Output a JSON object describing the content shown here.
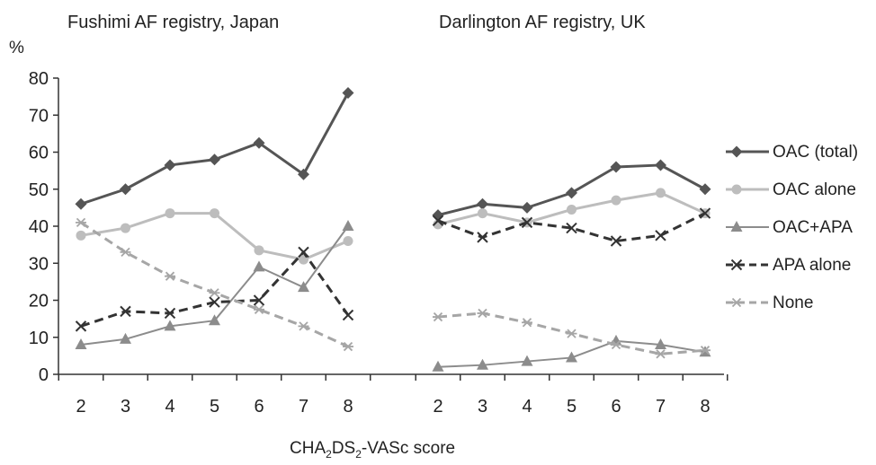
{
  "panels": [
    {
      "title": "Fushimi AF registry, Japan"
    },
    {
      "title": "Darlington AF registry, UK"
    }
  ],
  "y_unit": "%",
  "xlabel": {
    "prefix": "CHA",
    "sub1": "2",
    "mid": "DS",
    "sub2": "2",
    "suffix": "-VASc score"
  },
  "colors": {
    "axis": "#333333",
    "oac_total": "#555555",
    "oac_alone": "#bdbdbd",
    "oac_apa": "#8c8c8c",
    "apa_alone": "#333333",
    "none": "#a6a6a6"
  },
  "chart_data": [
    {
      "type": "line",
      "title": "Fushimi AF registry, Japan",
      "xlabel": "CHA2DS2-VASc score",
      "ylabel": "%",
      "categories": [
        "2",
        "3",
        "4",
        "5",
        "6",
        "7",
        "8"
      ],
      "ylim": [
        0,
        80
      ],
      "yticks": [
        0,
        10,
        20,
        30,
        40,
        50,
        60,
        70,
        80
      ],
      "grid": false,
      "legend": "right",
      "series": [
        {
          "name": "OAC (total)",
          "values": [
            46,
            50,
            56.5,
            58,
            62.5,
            54,
            76
          ]
        },
        {
          "name": "OAC alone",
          "values": [
            37.5,
            39.5,
            43.5,
            43.5,
            33.5,
            31,
            36
          ]
        },
        {
          "name": "OAC+APA",
          "values": [
            8,
            9.5,
            13,
            14.5,
            29,
            23.5,
            40
          ]
        },
        {
          "name": "APA alone",
          "values": [
            13,
            17,
            16.5,
            19.5,
            20,
            33,
            16
          ]
        },
        {
          "name": "None",
          "values": [
            41,
            33,
            26.5,
            22,
            17.5,
            13,
            7.5
          ]
        }
      ]
    },
    {
      "type": "line",
      "title": "Darlington AF registry, UK",
      "xlabel": "CHA2DS2-VASc score",
      "ylabel": "%",
      "categories": [
        "2",
        "3",
        "4",
        "5",
        "6",
        "7",
        "8"
      ],
      "ylim": [
        0,
        80
      ],
      "yticks": [
        0,
        10,
        20,
        30,
        40,
        50,
        60,
        70,
        80
      ],
      "grid": false,
      "legend": "right",
      "series": [
        {
          "name": "OAC (total)",
          "values": [
            43,
            46,
            45,
            49,
            56,
            56.5,
            50
          ]
        },
        {
          "name": "OAC alone",
          "values": [
            40.5,
            43.5,
            41,
            44.5,
            47,
            49,
            43.5
          ]
        },
        {
          "name": "OAC+APA",
          "values": [
            2,
            2.5,
            3.5,
            4.5,
            9,
            8,
            6
          ]
        },
        {
          "name": "APA alone",
          "values": [
            41.5,
            37,
            41,
            39.5,
            36,
            37.5,
            43.5
          ]
        },
        {
          "name": "None",
          "values": [
            15.5,
            16.5,
            14,
            11,
            8,
            5.5,
            6.5
          ]
        }
      ]
    }
  ],
  "legend": [
    {
      "name": "OAC (total)",
      "marker": "diamond",
      "dash": false
    },
    {
      "name": "OAC alone",
      "marker": "circle",
      "dash": false
    },
    {
      "name": "OAC+APA",
      "marker": "triangle",
      "dash": false
    },
    {
      "name": "APA alone",
      "marker": "x",
      "dash": true
    },
    {
      "name": "None",
      "marker": "star",
      "dash": true
    }
  ]
}
